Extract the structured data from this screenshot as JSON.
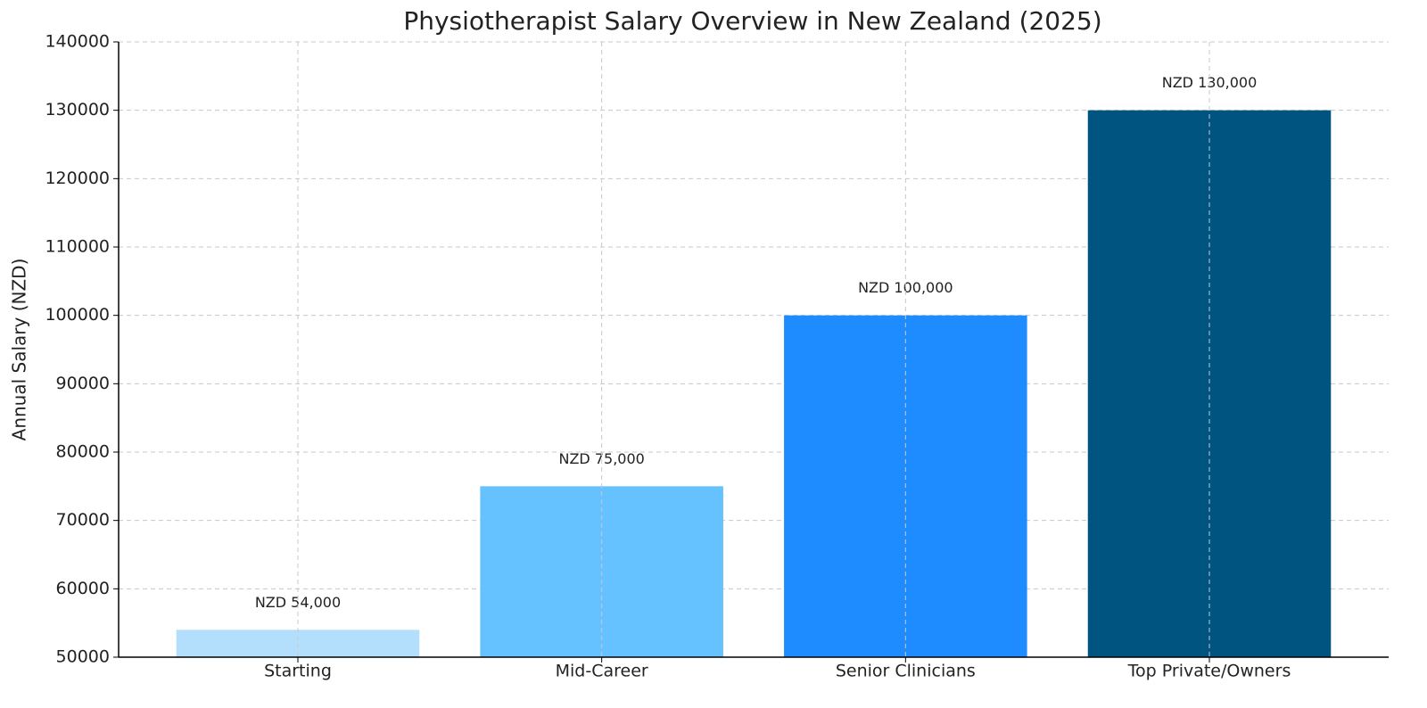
{
  "chart_data": {
    "type": "bar",
    "title": "Physiotherapist Salary Overview in New Zealand (2025)",
    "y_label": "Annual Salary (NZD)",
    "categories": [
      "Starting",
      "Mid-Career",
      "Senior Clinicians",
      "Top Private/Owners"
    ],
    "values": [
      54000,
      75000,
      100000,
      130000
    ],
    "value_labels": [
      "NZD 54,000",
      "NZD 75,000",
      "NZD 100,000",
      "NZD 130,000"
    ],
    "colors": [
      "#b3dffd",
      "#66c2fe",
      "#1e8cff",
      "#005480"
    ],
    "ylim": [
      50000,
      140000
    ],
    "yticks": [
      50000,
      60000,
      70000,
      80000,
      90000,
      100000,
      110000,
      120000,
      130000,
      140000
    ],
    "grid": true
  }
}
